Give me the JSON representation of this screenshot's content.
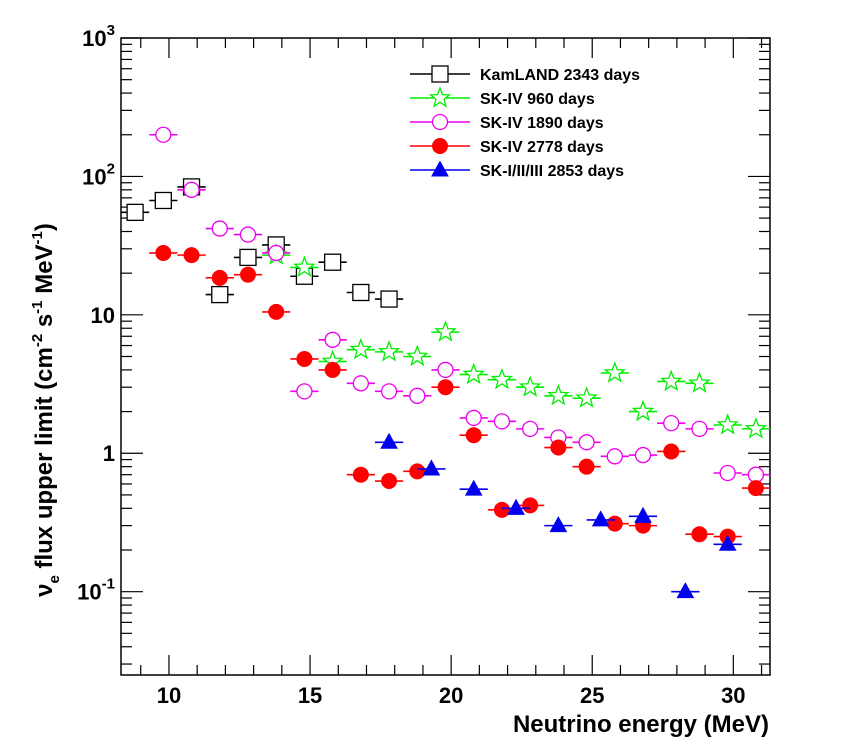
{
  "chart_data": {
    "type": "scatter",
    "title": "",
    "xlabel": "Neutrino energy (MeV)",
    "ylabel_parts": {
      "nu_bar": "ν",
      "nu_sub": "e",
      "main": " flux upper limit (cm",
      "sup1": "-2",
      "mid1": " s",
      "sup2": "-1",
      "mid2": " MeV",
      "sup3": "-1",
      "end": ")"
    },
    "xlim": [
      8.3,
      31.3
    ],
    "ylim": [
      0.025,
      1000
    ],
    "yscale": "log",
    "x_ticks": [
      {
        "value": 10,
        "label": "10"
      },
      {
        "value": 15,
        "label": "15"
      },
      {
        "value": 20,
        "label": "20"
      },
      {
        "value": 25,
        "label": "25"
      },
      {
        "value": 30,
        "label": "30"
      }
    ],
    "y_ticks": [
      {
        "value": 0.1,
        "base": "10",
        "exp": "-1"
      },
      {
        "value": 1,
        "base": "1",
        "exp": ""
      },
      {
        "value": 10,
        "base": "10",
        "exp": ""
      },
      {
        "value": 100,
        "base": "10",
        "exp": "2"
      },
      {
        "value": 1000,
        "base": "10",
        "exp": "3"
      }
    ],
    "grid": false,
    "legend_position": "top-right",
    "series": [
      {
        "name": "KamLAND 2343 days",
        "color": "#000000",
        "marker": "open-square",
        "points": [
          [
            8.8,
            55
          ],
          [
            9.8,
            67
          ],
          [
            10.8,
            84
          ],
          [
            11.8,
            14
          ],
          [
            12.8,
            26
          ],
          [
            13.8,
            32
          ],
          [
            14.8,
            19
          ],
          [
            15.8,
            24
          ],
          [
            16.8,
            14.5
          ],
          [
            17.8,
            13
          ]
        ]
      },
      {
        "name": "SK-IV 960 days",
        "color": "#00ee00",
        "marker": "open-star",
        "points": [
          [
            13.8,
            27
          ],
          [
            14.8,
            22
          ],
          [
            15.8,
            4.6
          ],
          [
            16.8,
            5.6
          ],
          [
            17.8,
            5.4
          ],
          [
            18.8,
            5.0
          ],
          [
            19.8,
            7.5
          ],
          [
            20.8,
            3.7
          ],
          [
            21.8,
            3.4
          ],
          [
            22.8,
            3.0
          ],
          [
            23.8,
            2.6
          ],
          [
            24.8,
            2.5
          ],
          [
            25.8,
            3.8
          ],
          [
            26.8,
            2.0
          ],
          [
            27.8,
            3.3
          ],
          [
            28.8,
            3.2
          ],
          [
            29.8,
            1.6
          ],
          [
            30.8,
            1.5
          ]
        ]
      },
      {
        "name": "SK-IV  1890 days",
        "color": "#ee00ee",
        "marker": "open-circle",
        "points": [
          [
            9.8,
            200
          ],
          [
            10.8,
            80
          ],
          [
            11.8,
            42
          ],
          [
            12.8,
            38
          ],
          [
            13.8,
            28
          ],
          [
            14.8,
            2.8
          ],
          [
            15.8,
            6.6
          ],
          [
            16.8,
            3.2
          ],
          [
            17.8,
            2.8
          ],
          [
            18.8,
            2.6
          ],
          [
            19.8,
            4.0
          ],
          [
            20.8,
            1.8
          ],
          [
            21.8,
            1.7
          ],
          [
            22.8,
            1.5
          ],
          [
            23.8,
            1.3
          ],
          [
            24.8,
            1.2
          ],
          [
            25.8,
            0.95
          ],
          [
            26.8,
            0.97
          ],
          [
            27.8,
            1.65
          ],
          [
            28.8,
            1.5
          ],
          [
            29.8,
            0.72
          ],
          [
            30.8,
            0.7
          ]
        ]
      },
      {
        "name": "SK-IV  2778 days",
        "color": "#ff0000",
        "marker": "filled-circle",
        "points": [
          [
            9.8,
            28
          ],
          [
            10.8,
            27
          ],
          [
            11.8,
            18.5
          ],
          [
            12.8,
            19.5
          ],
          [
            13.8,
            10.5
          ],
          [
            14.8,
            4.8
          ],
          [
            15.8,
            4.0
          ],
          [
            16.8,
            0.7
          ],
          [
            17.8,
            0.63
          ],
          [
            18.8,
            0.74
          ],
          [
            19.8,
            3.0
          ],
          [
            20.8,
            1.35
          ],
          [
            21.8,
            0.39
          ],
          [
            22.8,
            0.42
          ],
          [
            23.8,
            1.1
          ],
          [
            24.8,
            0.8
          ],
          [
            25.8,
            0.31
          ],
          [
            26.8,
            0.3
          ],
          [
            27.8,
            1.03
          ],
          [
            28.8,
            0.26
          ],
          [
            29.8,
            0.25
          ],
          [
            30.8,
            0.56
          ]
        ]
      },
      {
        "name": "SK-I/II/III 2853 days",
        "color": "#0000ee",
        "marker": "filled-triangle",
        "points": [
          [
            17.8,
            1.2
          ],
          [
            19.3,
            0.77
          ],
          [
            20.8,
            0.55
          ],
          [
            22.3,
            0.4
          ],
          [
            23.8,
            0.3
          ],
          [
            25.3,
            0.33
          ],
          [
            26.8,
            0.35
          ],
          [
            28.3,
            0.1
          ],
          [
            29.8,
            0.22
          ]
        ]
      }
    ]
  }
}
